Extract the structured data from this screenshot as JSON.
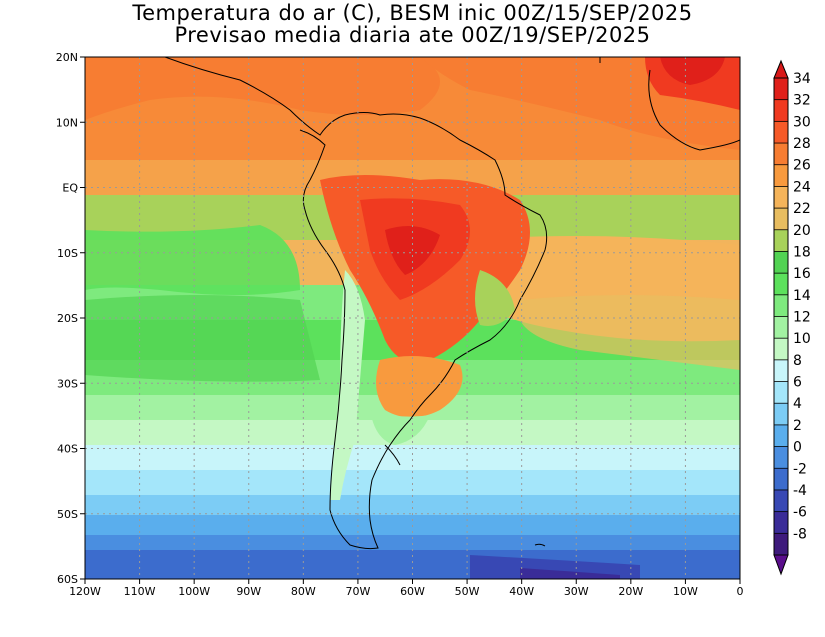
{
  "title": {
    "line1": "Temperatura do ar (C), BESM inic 00Z/15/SEP/2025",
    "line2": "Previsao media diaria ate 00Z/19/SEP/2025"
  },
  "map": {
    "lon_range": [
      -120,
      0
    ],
    "lat_range": [
      -60,
      20
    ],
    "lat_labels": [
      {
        "lat": 20,
        "text": "20N"
      },
      {
        "lat": 10,
        "text": "10N"
      },
      {
        "lat": 0,
        "text": "EQ"
      },
      {
        "lat": -10,
        "text": "10S"
      },
      {
        "lat": -20,
        "text": "20S"
      },
      {
        "lat": -30,
        "text": "30S"
      },
      {
        "lat": -40,
        "text": "40S"
      },
      {
        "lat": -50,
        "text": "50S"
      },
      {
        "lat": -60,
        "text": "60S"
      }
    ],
    "lon_labels": [
      {
        "lon": -120,
        "text": "120W"
      },
      {
        "lon": -110,
        "text": "110W"
      },
      {
        "lon": -100,
        "text": "100W"
      },
      {
        "lon": -90,
        "text": "90W"
      },
      {
        "lon": -80,
        "text": "80W"
      },
      {
        "lon": -70,
        "text": "70W"
      },
      {
        "lon": -60,
        "text": "60W"
      },
      {
        "lon": -50,
        "text": "50W"
      },
      {
        "lon": -40,
        "text": "40W"
      },
      {
        "lon": -30,
        "text": "30W"
      },
      {
        "lon": -20,
        "text": "20W"
      },
      {
        "lon": -10,
        "text": "10W"
      },
      {
        "lon": 0,
        "text": "0"
      }
    ]
  },
  "colorbar": {
    "levels": [
      {
        "value": "34",
        "color": "#e0201a"
      },
      {
        "value": "32",
        "color": "#f03a20"
      },
      {
        "value": "30",
        "color": "#f65a28"
      },
      {
        "value": "28",
        "color": "#f77d32"
      },
      {
        "value": "26",
        "color": "#f89a3e"
      },
      {
        "value": "24",
        "color": "#f5b45a"
      },
      {
        "value": "22",
        "color": "#e8bd60"
      },
      {
        "value": "20",
        "color": "#a8d25a"
      },
      {
        "value": "18",
        "color": "#52d353"
      },
      {
        "value": "16",
        "color": "#5ce15c"
      },
      {
        "value": "14",
        "color": "#7eea7e"
      },
      {
        "value": "12",
        "color": "#a2f2a2"
      },
      {
        "value": "10",
        "color": "#c4f8c4"
      },
      {
        "value": "8",
        "color": "#c8f5fa"
      },
      {
        "value": "6",
        "color": "#a4e6fa"
      },
      {
        "value": "4",
        "color": "#7cccf5"
      },
      {
        "value": "2",
        "color": "#5aaeed"
      },
      {
        "value": "0",
        "color": "#4a8ee0"
      },
      {
        "value": "-2",
        "color": "#3c6ccd"
      },
      {
        "value": "-4",
        "color": "#3848b4"
      },
      {
        "value": "-6",
        "color": "#3a2c98"
      },
      {
        "value": "-8",
        "color": "#3e1a7c"
      }
    ],
    "top_color": "#d81818",
    "bottom_color": "#5a0e8c"
  }
}
